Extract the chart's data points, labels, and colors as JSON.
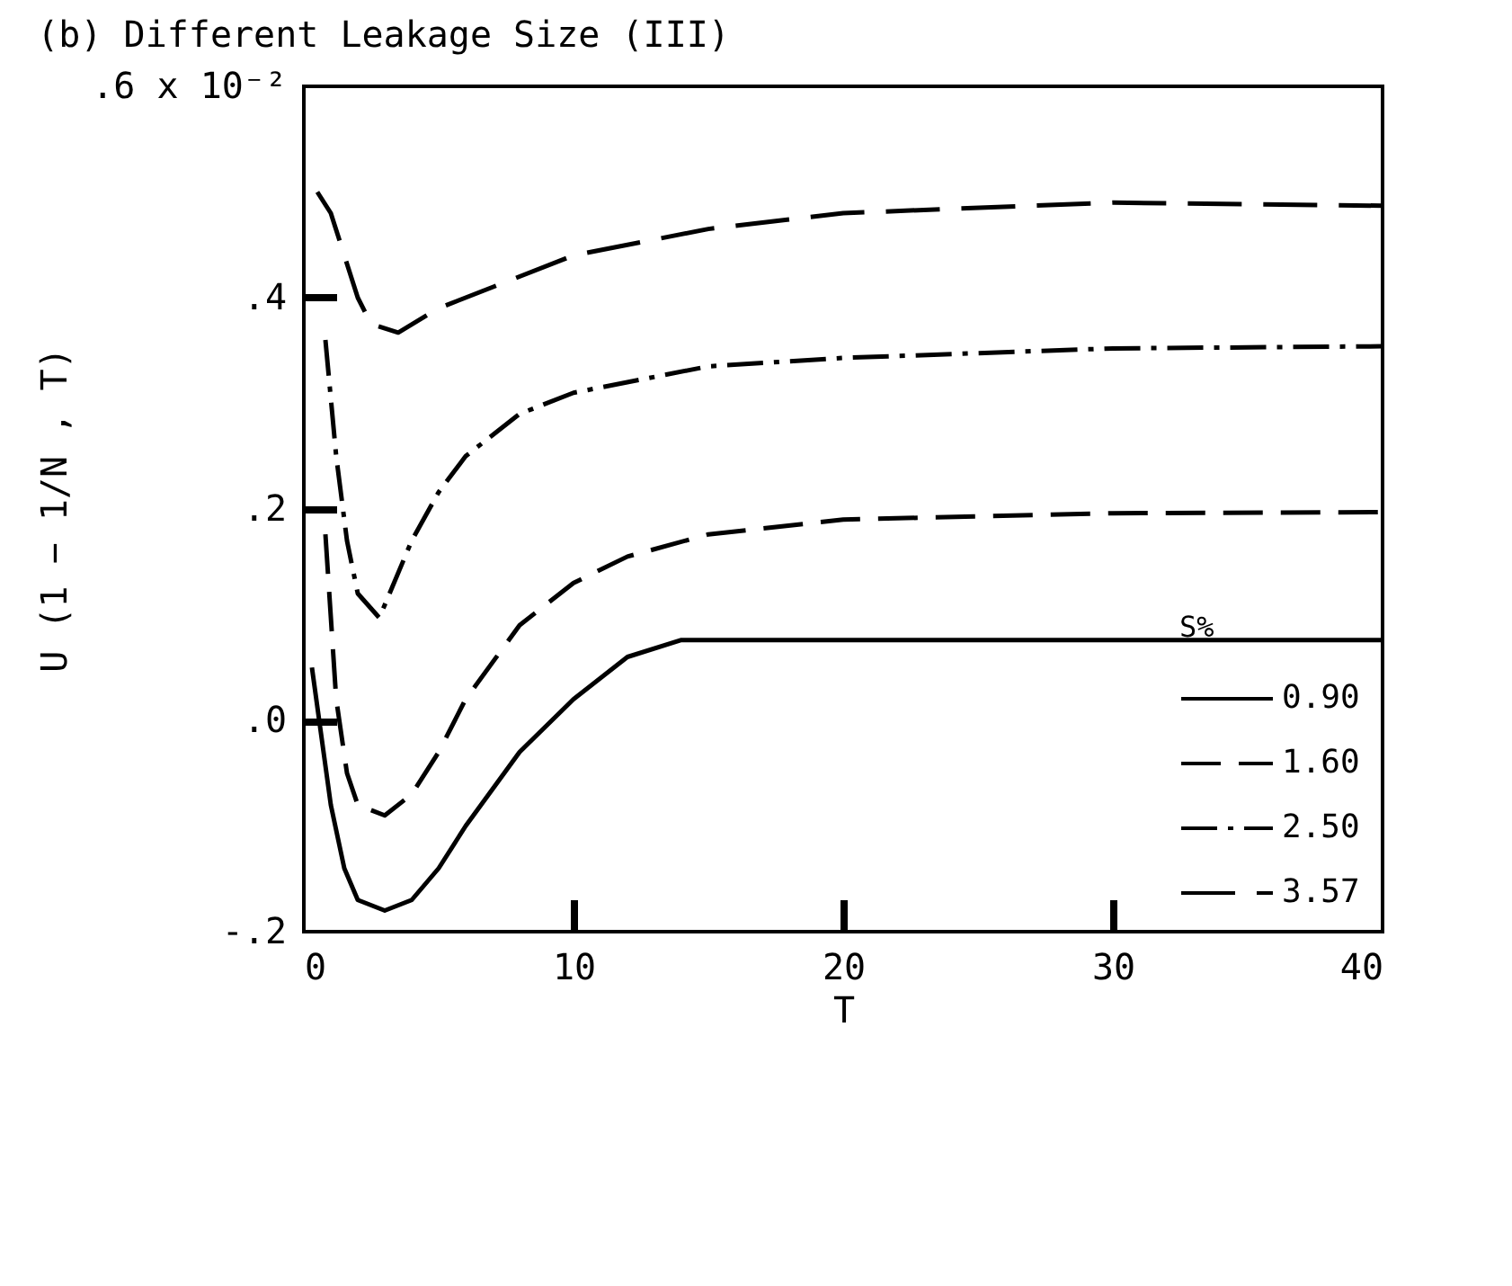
{
  "chart_data": {
    "type": "line",
    "title": "(b) Different Leakage Size (III)",
    "xlabel": "T",
    "ylabel": "U (1 − 1/N , T)",
    "legend_title": "S%",
    "legend": "bottom right",
    "grid": false,
    "marker": "none",
    "xlim": [
      0,
      40
    ],
    "xticks": [
      0,
      10,
      20,
      30,
      40
    ],
    "ylim": [
      -0.2,
      0.6
    ],
    "yticks": [
      {
        "value": -0.2,
        "label": "-.2"
      },
      {
        "value": 0,
        "label": ".0"
      },
      {
        "value": 0.2,
        "label": ".2"
      },
      {
        "value": 0.4,
        "label": ".4"
      },
      {
        "value": 0.6,
        "label": ".6 x 10⁻²"
      }
    ],
    "series": [
      {
        "name": "0.90",
        "color": "#000000",
        "line_style": "solid",
        "x": [
          0.3,
          1,
          1.5,
          2,
          3,
          4,
          5,
          6,
          8,
          10,
          12,
          14,
          20,
          30,
          40
        ],
        "values": [
          0.05,
          -0.08,
          -0.14,
          -0.17,
          -0.18,
          -0.17,
          -0.14,
          -0.1,
          -0.03,
          0.02,
          0.06,
          0.076,
          0.076,
          0.076,
          0.076
        ]
      },
      {
        "name": "1.60",
        "color": "#000000",
        "line_style": "dashed",
        "x": [
          0.8,
          1.2,
          1.6,
          2,
          3,
          4,
          5,
          6,
          8,
          10,
          12,
          15,
          20,
          30,
          40
        ],
        "values": [
          0.176,
          0.02,
          -0.05,
          -0.08,
          -0.09,
          -0.07,
          -0.03,
          0.02,
          0.09,
          0.13,
          0.155,
          0.176,
          0.19,
          0.196,
          0.197
        ]
      },
      {
        "name": "2.50",
        "color": "#000000",
        "line_style": "dashed",
        "x": [
          0.8,
          1.2,
          1.6,
          2,
          2.8,
          4,
          5,
          6,
          8,
          10,
          15,
          20,
          30,
          40
        ],
        "values": [
          0.36,
          0.25,
          0.17,
          0.12,
          0.097,
          0.17,
          0.216,
          0.25,
          0.29,
          0.31,
          0.335,
          0.343,
          0.352,
          0.354
        ]
      },
      {
        "name": "3.57",
        "color": "#000000",
        "line_style": "dashed",
        "x": [
          0.5,
          1,
          1.5,
          2,
          2.5,
          3.5,
          5,
          7,
          10,
          15,
          20,
          30,
          40
        ],
        "values": [
          0.5,
          0.48,
          0.44,
          0.4,
          0.375,
          0.367,
          0.39,
          0.41,
          0.44,
          0.465,
          0.48,
          0.49,
          0.487
        ]
      }
    ]
  }
}
